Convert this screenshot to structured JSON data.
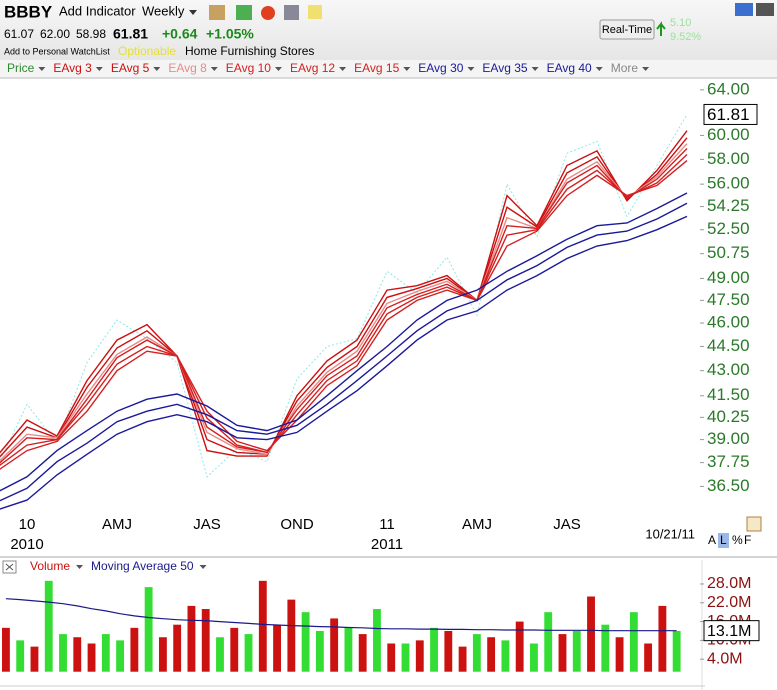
{
  "header": {
    "symbol": "BBBY",
    "add_indicator": "Add Indicator",
    "interval": "Weekly",
    "open": "61.07",
    "high": "62.00",
    "low": "58.98",
    "last": "61.81",
    "change": "+0.64",
    "change_pct": "+1.05%",
    "watchlist": "Add to Personal WatchList",
    "optionable": "Optionable",
    "industry": "Home Furnishing Stores",
    "realtime": "Real-Time",
    "rt_change": "5.10",
    "rt_pct": "9.52%",
    "more": "More",
    "scale_buttons": [
      "A",
      "L",
      "%",
      "F"
    ]
  },
  "chart_data": [
    {
      "type": "line",
      "log_scale": true,
      "categories": [
        null,
        "10",
        null,
        null,
        "AMJ",
        null,
        null,
        "JAS",
        null,
        null,
        "OND",
        null,
        null,
        "11",
        null,
        null,
        "AMJ",
        null,
        null,
        "JAS",
        null,
        null,
        null,
        null
      ],
      "year_labels": [
        null,
        "2010",
        null,
        null,
        null,
        null,
        null,
        null,
        null,
        null,
        null,
        null,
        null,
        "2011",
        null,
        null,
        null,
        null,
        null,
        null,
        null,
        null,
        null,
        null
      ],
      "last_date": "10/21/11",
      "ylim": [
        35.3,
        64.9
      ],
      "yticks": [
        {
          "value": 64,
          "label": "64.00"
        },
        {
          "value": 60,
          "label": "60.00"
        },
        {
          "value": 58,
          "label": "58.00"
        },
        {
          "value": 56,
          "label": "56.00"
        },
        {
          "value": 54.25,
          "label": "54.25"
        },
        {
          "value": 52.5,
          "label": "52.50"
        },
        {
          "value": 50.75,
          "label": "50.75"
        },
        {
          "value": 49,
          "label": "49.00"
        },
        {
          "value": 47.5,
          "label": "47.50"
        },
        {
          "value": 46,
          "label": "46.00"
        },
        {
          "value": 44.5,
          "label": "44.50"
        },
        {
          "value": 43,
          "label": "43.00"
        },
        {
          "value": 41.5,
          "label": "41.50"
        },
        {
          "value": 40.25,
          "label": "40.25"
        },
        {
          "value": 39,
          "label": "39.00"
        },
        {
          "value": 37.75,
          "label": "37.75"
        },
        {
          "value": 36.5,
          "label": "36.50"
        }
      ],
      "series": [
        {
          "name": "Price",
          "color": "#8ee8e8",
          "legend_color": "#2e8b2e",
          "dashed": true,
          "values": [
            37.5,
            41.0,
            38.8,
            43.5,
            46.2,
            45.0,
            43.5,
            37.0,
            38.5,
            37.8,
            42.5,
            44.5,
            45.0,
            49.5,
            48.0,
            50.5,
            46.5,
            56.0,
            52.0,
            58.5,
            59.5,
            53.5,
            57.5,
            61.81
          ]
        },
        {
          "name": "EAvg 3",
          "color": "#cc1010",
          "values": [
            38.1,
            40.1,
            39.2,
            42.4,
            44.9,
            45.9,
            43.9,
            38.4,
            38.1,
            38.1,
            41.5,
            43.6,
            44.9,
            48.2,
            48.5,
            49.2,
            47.5,
            55.1,
            52.8,
            57.5,
            58.7,
            54.7,
            57.1,
            60.4
          ]
        },
        {
          "name": "EAvg 5",
          "color": "#cc1010",
          "values": [
            37.9,
            39.7,
            39.1,
            42.0,
            44.4,
            45.5,
            43.9,
            39.0,
            38.3,
            38.2,
            41.2,
            43.2,
            44.5,
            47.7,
            48.3,
            49.0,
            47.5,
            54.2,
            52.7,
            56.9,
            58.2,
            54.8,
            56.8,
            59.8
          ]
        },
        {
          "name": "EAvg 8",
          "color": "#e88a8a",
          "values": [
            37.7,
            39.3,
            39.1,
            41.6,
            44.0,
            45.1,
            43.9,
            39.4,
            38.5,
            38.2,
            40.9,
            42.9,
            44.2,
            47.3,
            48.1,
            48.8,
            47.5,
            53.4,
            52.6,
            56.4,
            57.8,
            54.9,
            56.6,
            59.3
          ]
        },
        {
          "name": "EAvg 10",
          "color": "#d42020",
          "values": [
            37.6,
            39.1,
            39.0,
            41.3,
            43.8,
            44.9,
            43.9,
            39.7,
            38.6,
            38.3,
            40.7,
            42.7,
            43.9,
            47.0,
            47.9,
            48.6,
            47.5,
            52.8,
            52.6,
            56.1,
            57.5,
            54.9,
            56.4,
            58.9
          ]
        },
        {
          "name": "EAvg 12",
          "color": "#d42020",
          "values": [
            37.5,
            38.7,
            39.0,
            41.0,
            43.4,
            44.5,
            43.9,
            40.2,
            38.7,
            38.3,
            40.4,
            42.4,
            43.6,
            46.6,
            47.7,
            48.4,
            47.5,
            52.1,
            52.5,
            55.6,
            57.1,
            55.0,
            56.1,
            58.4
          ]
        },
        {
          "name": "EAvg 15",
          "color": "#d42020",
          "values": [
            37.3,
            38.4,
            38.9,
            40.6,
            43.0,
            44.2,
            43.9,
            40.6,
            38.9,
            38.4,
            40.1,
            42.1,
            43.3,
            46.2,
            47.5,
            48.2,
            47.5,
            51.3,
            52.4,
            55.1,
            56.7,
            55.1,
            55.9,
            57.9
          ]
        },
        {
          "name": "EAvg 30",
          "color": "#1a1a9a",
          "values": [
            36.2,
            37.0,
            38.4,
            39.5,
            40.6,
            41.3,
            41.6,
            40.9,
            39.8,
            39.5,
            40.1,
            41.5,
            43.0,
            44.5,
            46.2,
            47.5,
            48.2,
            49.5,
            50.6,
            51.8,
            52.8,
            53.0,
            54.1,
            55.3
          ]
        },
        {
          "name": "EAvg 35",
          "color": "#1a1a9a",
          "values": [
            35.7,
            36.4,
            37.8,
            38.8,
            40.0,
            40.6,
            41.0,
            40.4,
            39.5,
            39.3,
            39.8,
            41.0,
            42.4,
            43.9,
            45.5,
            46.8,
            47.5,
            48.9,
            49.9,
            51.2,
            52.1,
            52.4,
            53.3,
            54.5
          ]
        },
        {
          "name": "EAvg 40",
          "color": "#1a1a9a",
          "values": [
            35.3,
            35.8,
            37.1,
            38.2,
            39.3,
            40.0,
            40.4,
            40.0,
            39.1,
            39.0,
            39.4,
            40.6,
            41.8,
            43.3,
            44.9,
            46.2,
            46.8,
            48.2,
            49.2,
            50.4,
            51.3,
            51.7,
            52.5,
            53.5
          ]
        }
      ]
    },
    {
      "type": "bar",
      "ylim": [
        0,
        30000000
      ],
      "yticks": [
        {
          "value": 28000000,
          "label": "28.0M"
        },
        {
          "value": 22000000,
          "label": "22.0M"
        },
        {
          "value": 16000000,
          "label": "16.0M"
        },
        {
          "value": 10000000,
          "label": "10.0M"
        },
        {
          "value": 4000000,
          "label": "4.0M"
        }
      ],
      "current_value": {
        "value": 13100000,
        "label": "13.1M"
      },
      "series": [
        {
          "name": "Volume",
          "color": "#cc1111",
          "values": [
            14000000,
            10000000,
            8000000,
            29000000,
            12000000,
            11000000,
            9000000,
            12000000,
            10000000,
            14000000,
            27000000,
            11000000,
            15000000,
            21000000,
            20000000,
            11000000,
            14000000,
            12000000,
            29000000,
            15000000,
            23000000,
            19000000,
            13000000,
            17000000,
            14000000,
            12000000,
            20000000,
            9000000,
            9000000,
            10000000,
            14000000,
            13000000,
            8000000,
            12000000,
            11000000,
            10000000,
            16000000,
            9000000,
            19000000,
            12000000,
            13000000,
            24000000,
            15000000,
            11000000,
            19000000,
            9000000,
            21000000,
            13000000
          ],
          "colors": [
            "#cc1111",
            "#33dd33",
            "#cc1111",
            "#33dd33",
            "#33dd33",
            "#cc1111",
            "#cc1111",
            "#33dd33",
            "#33dd33",
            "#cc1111",
            "#33dd33",
            "#cc1111",
            "#cc1111",
            "#cc1111",
            "#cc1111",
            "#33dd33",
            "#cc1111",
            "#33dd33",
            "#cc1111",
            "#cc1111",
            "#cc1111",
            "#33dd33",
            "#33dd33",
            "#cc1111",
            "#33dd33",
            "#cc1111",
            "#33dd33",
            "#cc1111",
            "#33dd33",
            "#cc1111",
            "#33dd33",
            "#cc1111",
            "#cc1111",
            "#33dd33",
            "#cc1111",
            "#33dd33",
            "#cc1111",
            "#33dd33",
            "#33dd33",
            "#cc1111",
            "#33dd33",
            "#cc1111",
            "#33dd33",
            "#cc1111",
            "#33dd33",
            "#cc1111",
            "#cc1111",
            "#33dd33"
          ]
        },
        {
          "name": "Moving Average 50",
          "type": "line",
          "color": "#1a1a8a",
          "values": [
            23300000,
            23000000,
            22600000,
            22200000,
            21700000,
            21000000,
            20100000,
            19400000,
            18500000,
            17800000,
            17300000,
            16900000,
            16600000,
            16400000,
            16300000,
            16000000,
            15700000,
            15400000,
            15100000,
            14900000,
            14700000,
            14600000,
            14400000,
            14300000,
            14100000,
            14000000,
            13800000,
            13700000,
            13700000,
            13600000,
            13600000,
            13500000,
            13500000,
            13400000,
            13400000,
            13300000,
            13300000,
            13300000,
            13200000,
            13200000,
            13200000,
            13200000,
            13100000,
            13100000,
            13100000,
            13100000,
            13100000,
            13100000
          ]
        }
      ]
    }
  ]
}
